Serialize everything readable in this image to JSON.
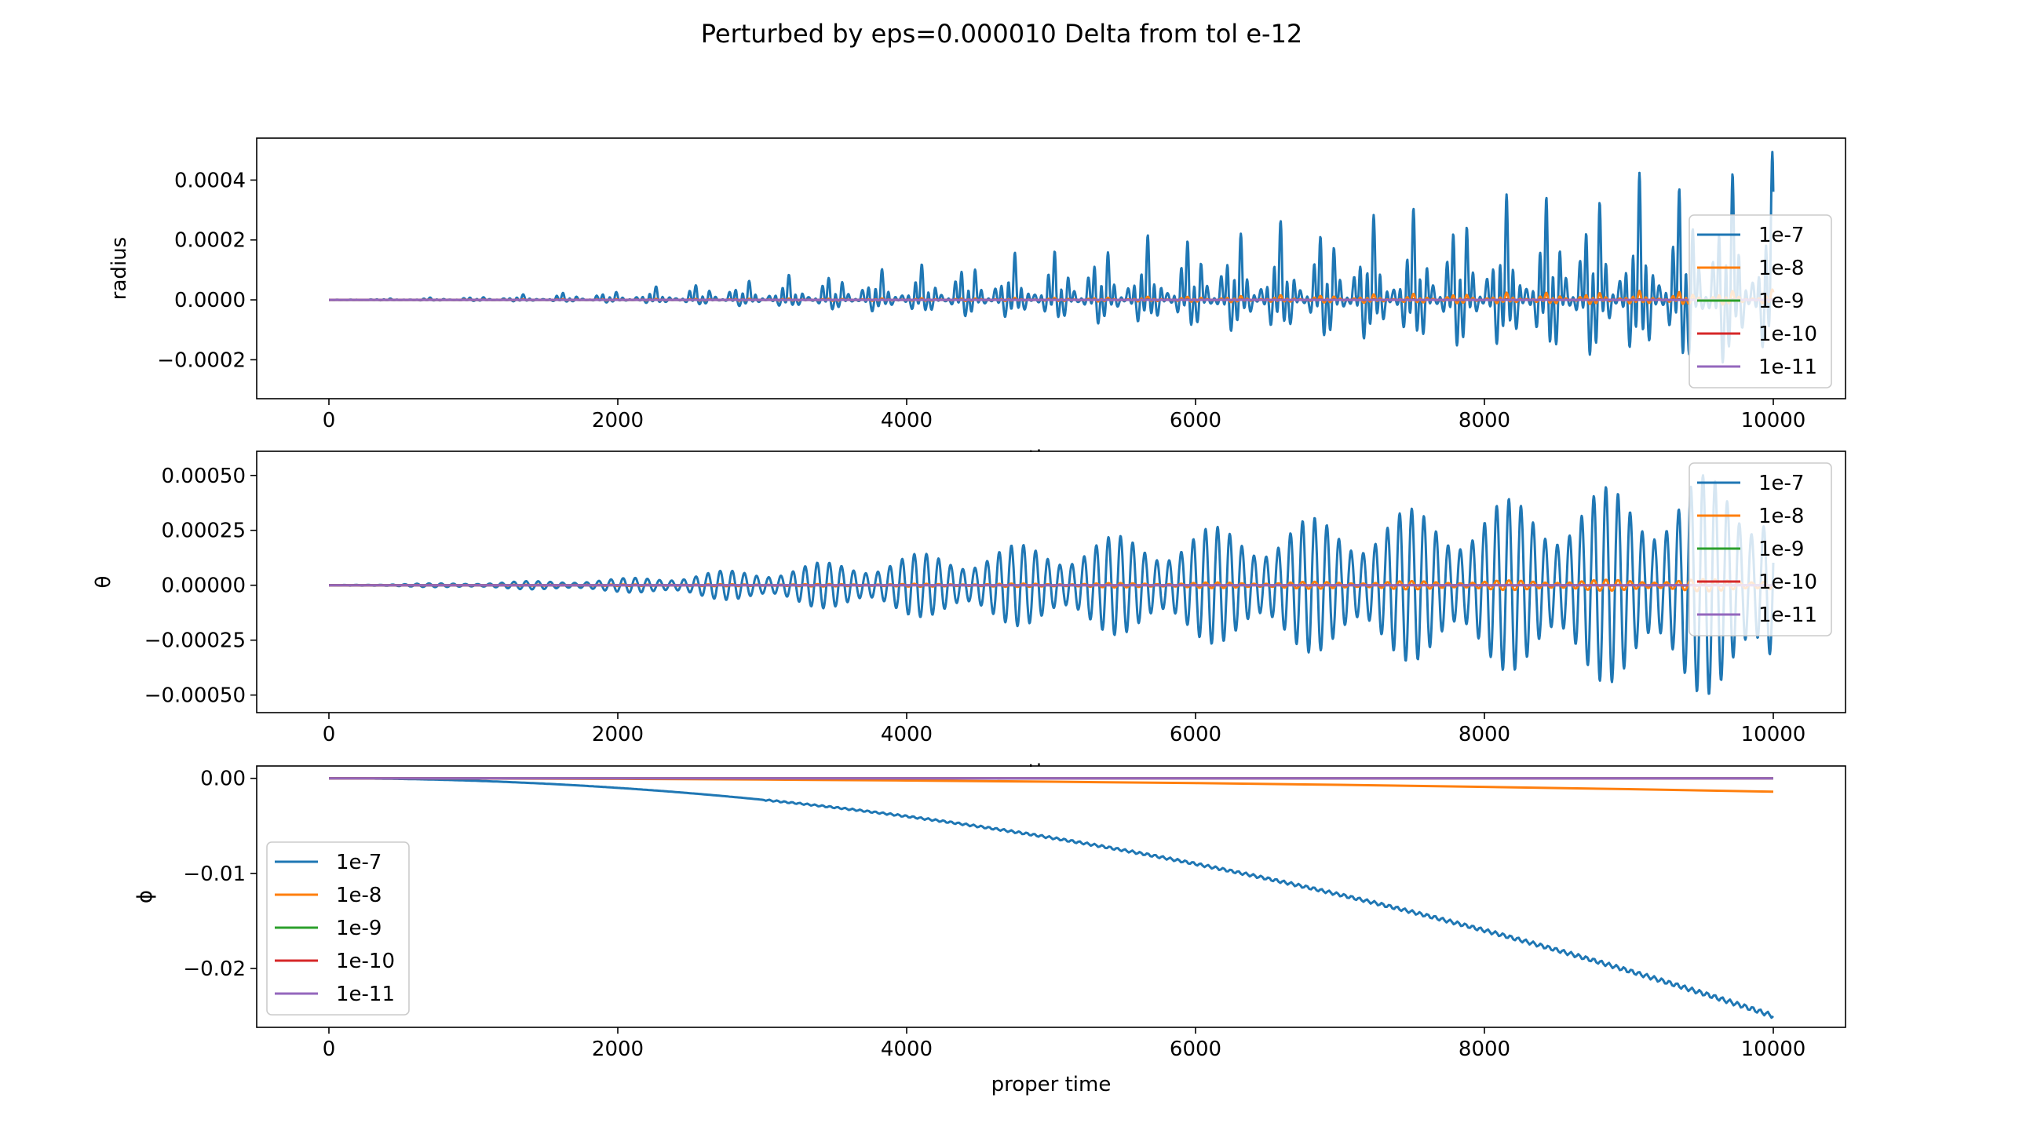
{
  "figure": {
    "title": "Perturbed by eps=0.000010 Delta from tol e-12"
  },
  "chart_data": [
    {
      "type": "line",
      "ylabel": "radius",
      "xlabel": "time",
      "xlim": [
        -500,
        10500
      ],
      "ylim": [
        -0.00033,
        0.00054
      ],
      "xticks": [
        0,
        2000,
        4000,
        6000,
        8000,
        10000
      ],
      "xtick_labels": [
        "0",
        "2000",
        "4000",
        "6000",
        "8000",
        "10000"
      ],
      "yticks": [
        0.0004,
        0.0002,
        0.0,
        -0.0002
      ],
      "ytick_labels": [
        "0.0004",
        "0.0002",
        "0.0000",
        "−0.0002"
      ],
      "legend_position": "right",
      "grid": false,
      "x": [
        0,
        10000
      ],
      "series": [
        {
          "name": "1e-7",
          "color": "#1f77b4",
          "envelope": [
            [
              0,
              0.0
            ],
            [
              1000,
              1.2e-05
            ],
            [
              2000,
              3.5e-05
            ],
            [
              3000,
              8e-05
            ],
            [
              4000,
              0.00012
            ],
            [
              5000,
              0.00018
            ],
            [
              6000,
              0.00024
            ],
            [
              7000,
              0.00029
            ],
            [
              8000,
              0.00035
            ],
            [
              9000,
              0.00042
            ],
            [
              10000,
              0.0005
            ]
          ],
          "envelope_min": [
            [
              0,
              0.0
            ],
            [
              1000,
              -4e-06
            ],
            [
              2000,
              -1e-05
            ],
            [
              3000,
              -2.5e-05
            ],
            [
              4000,
              -5e-05
            ],
            [
              5000,
              -8e-05
            ],
            [
              6000,
              -0.00011
            ],
            [
              7000,
              -0.00015
            ],
            [
              8000,
              -0.00019
            ],
            [
              9000,
              -0.00023
            ],
            [
              10000,
              -0.00027
            ]
          ]
        },
        {
          "name": "1e-8",
          "color": "#ff7f0e",
          "envelope": [
            [
              0,
              0.0
            ],
            [
              5000,
              7e-06
            ],
            [
              10000,
              3.5e-05
            ]
          ],
          "envelope_min": [
            [
              0,
              0.0
            ],
            [
              5000,
              -5e-06
            ],
            [
              10000,
              -2e-05
            ]
          ]
        },
        {
          "name": "1e-9",
          "color": "#2ca02c",
          "envelope": [
            [
              0,
              0.0
            ],
            [
              10000,
              2e-06
            ]
          ],
          "envelope_min": [
            [
              0,
              0.0
            ],
            [
              10000,
              -2e-06
            ]
          ]
        },
        {
          "name": "1e-10",
          "color": "#d62728",
          "envelope": [
            [
              0,
              0.0
            ],
            [
              10000,
              1e-06
            ]
          ],
          "envelope_min": [
            [
              0,
              0.0
            ],
            [
              10000,
              -1e-06
            ]
          ]
        },
        {
          "name": "1e-11",
          "color": "#9467bd",
          "envelope": [
            [
              0,
              0.0
            ],
            [
              10000,
              0.0
            ]
          ],
          "envelope_min": [
            [
              0,
              0.0
            ],
            [
              10000,
              0.0
            ]
          ]
        }
      ]
    },
    {
      "type": "line",
      "ylabel": "θ",
      "xlabel": "time",
      "xlim": [
        -500,
        10500
      ],
      "ylim": [
        -0.00058,
        0.00061
      ],
      "xticks": [
        0,
        2000,
        4000,
        6000,
        8000,
        10000
      ],
      "xtick_labels": [
        "0",
        "2000",
        "4000",
        "6000",
        "8000",
        "10000"
      ],
      "yticks": [
        0.0005,
        0.00025,
        0.0,
        -0.00025,
        -0.0005
      ],
      "ytick_labels": [
        "0.00050",
        "0.00025",
        "0.00000",
        "−0.00025",
        "−0.00050"
      ],
      "legend_position": "upper right",
      "grid": false,
      "x": [
        0,
        10000
      ],
      "series": [
        {
          "name": "1e-7",
          "color": "#1f77b4",
          "amplitude": [
            [
              0,
              0.0
            ],
            [
              1000,
              1.2e-05
            ],
            [
              2000,
              3e-05
            ],
            [
              3000,
              8e-05
            ],
            [
              4000,
              0.00014
            ],
            [
              5000,
              0.0002
            ],
            [
              6000,
              0.00026
            ],
            [
              7000,
              0.00032
            ],
            [
              8000,
              0.00038
            ],
            [
              9000,
              0.00046
            ],
            [
              10000,
              0.00054
            ]
          ]
        },
        {
          "name": "1e-8",
          "color": "#ff7f0e",
          "amplitude": [
            [
              0,
              0.0
            ],
            [
              5000,
              8e-06
            ],
            [
              10000,
              3e-05
            ]
          ]
        },
        {
          "name": "1e-9",
          "color": "#2ca02c",
          "amplitude": [
            [
              0,
              0.0
            ],
            [
              10000,
              2e-06
            ]
          ]
        },
        {
          "name": "1e-10",
          "color": "#d62728",
          "amplitude": [
            [
              0,
              0.0
            ],
            [
              10000,
              1e-06
            ]
          ]
        },
        {
          "name": "1e-11",
          "color": "#9467bd",
          "amplitude": [
            [
              0,
              0.0
            ],
            [
              10000,
              0.0
            ]
          ]
        }
      ]
    },
    {
      "type": "line",
      "ylabel": "ϕ",
      "xlabel": "proper time",
      "xlim": [
        -500,
        10500
      ],
      "ylim": [
        -0.0262,
        0.0013
      ],
      "xticks": [
        0,
        2000,
        4000,
        6000,
        8000,
        10000
      ],
      "xtick_labels": [
        "0",
        "2000",
        "4000",
        "6000",
        "8000",
        "10000"
      ],
      "yticks": [
        0.0,
        -0.01,
        -0.02
      ],
      "ytick_labels": [
        "0.00",
        "−0.01",
        "−0.02"
      ],
      "legend_position": "center left",
      "grid": false,
      "x": [
        0,
        1000,
        2000,
        3000,
        4000,
        5000,
        6000,
        7000,
        8000,
        9000,
        10000
      ],
      "series": [
        {
          "name": "1e-7",
          "color": "#1f77b4",
          "values": [
            0.0,
            -0.00025,
            -0.001,
            -0.00225,
            -0.004,
            -0.00625,
            -0.009,
            -0.01225,
            -0.016,
            -0.02025,
            -0.025
          ]
        },
        {
          "name": "1e-8",
          "color": "#ff7f0e",
          "values": [
            0.0,
            -1.4e-05,
            -5.6e-05,
            -0.000126,
            -0.000224,
            -0.00035,
            -0.000504,
            -0.000686,
            -0.000896,
            -0.001134,
            -0.0014
          ]
        },
        {
          "name": "1e-9",
          "color": "#2ca02c",
          "values": [
            0,
            0,
            0,
            0,
            0,
            0,
            0,
            0,
            0,
            0,
            0
          ]
        },
        {
          "name": "1e-10",
          "color": "#d62728",
          "values": [
            0,
            0,
            0,
            0,
            0,
            0,
            0,
            0,
            0,
            0,
            0
          ]
        },
        {
          "name": "1e-11",
          "color": "#9467bd",
          "values": [
            0,
            0,
            0,
            0,
            0,
            0,
            0,
            0,
            0,
            0,
            0
          ]
        }
      ]
    }
  ]
}
